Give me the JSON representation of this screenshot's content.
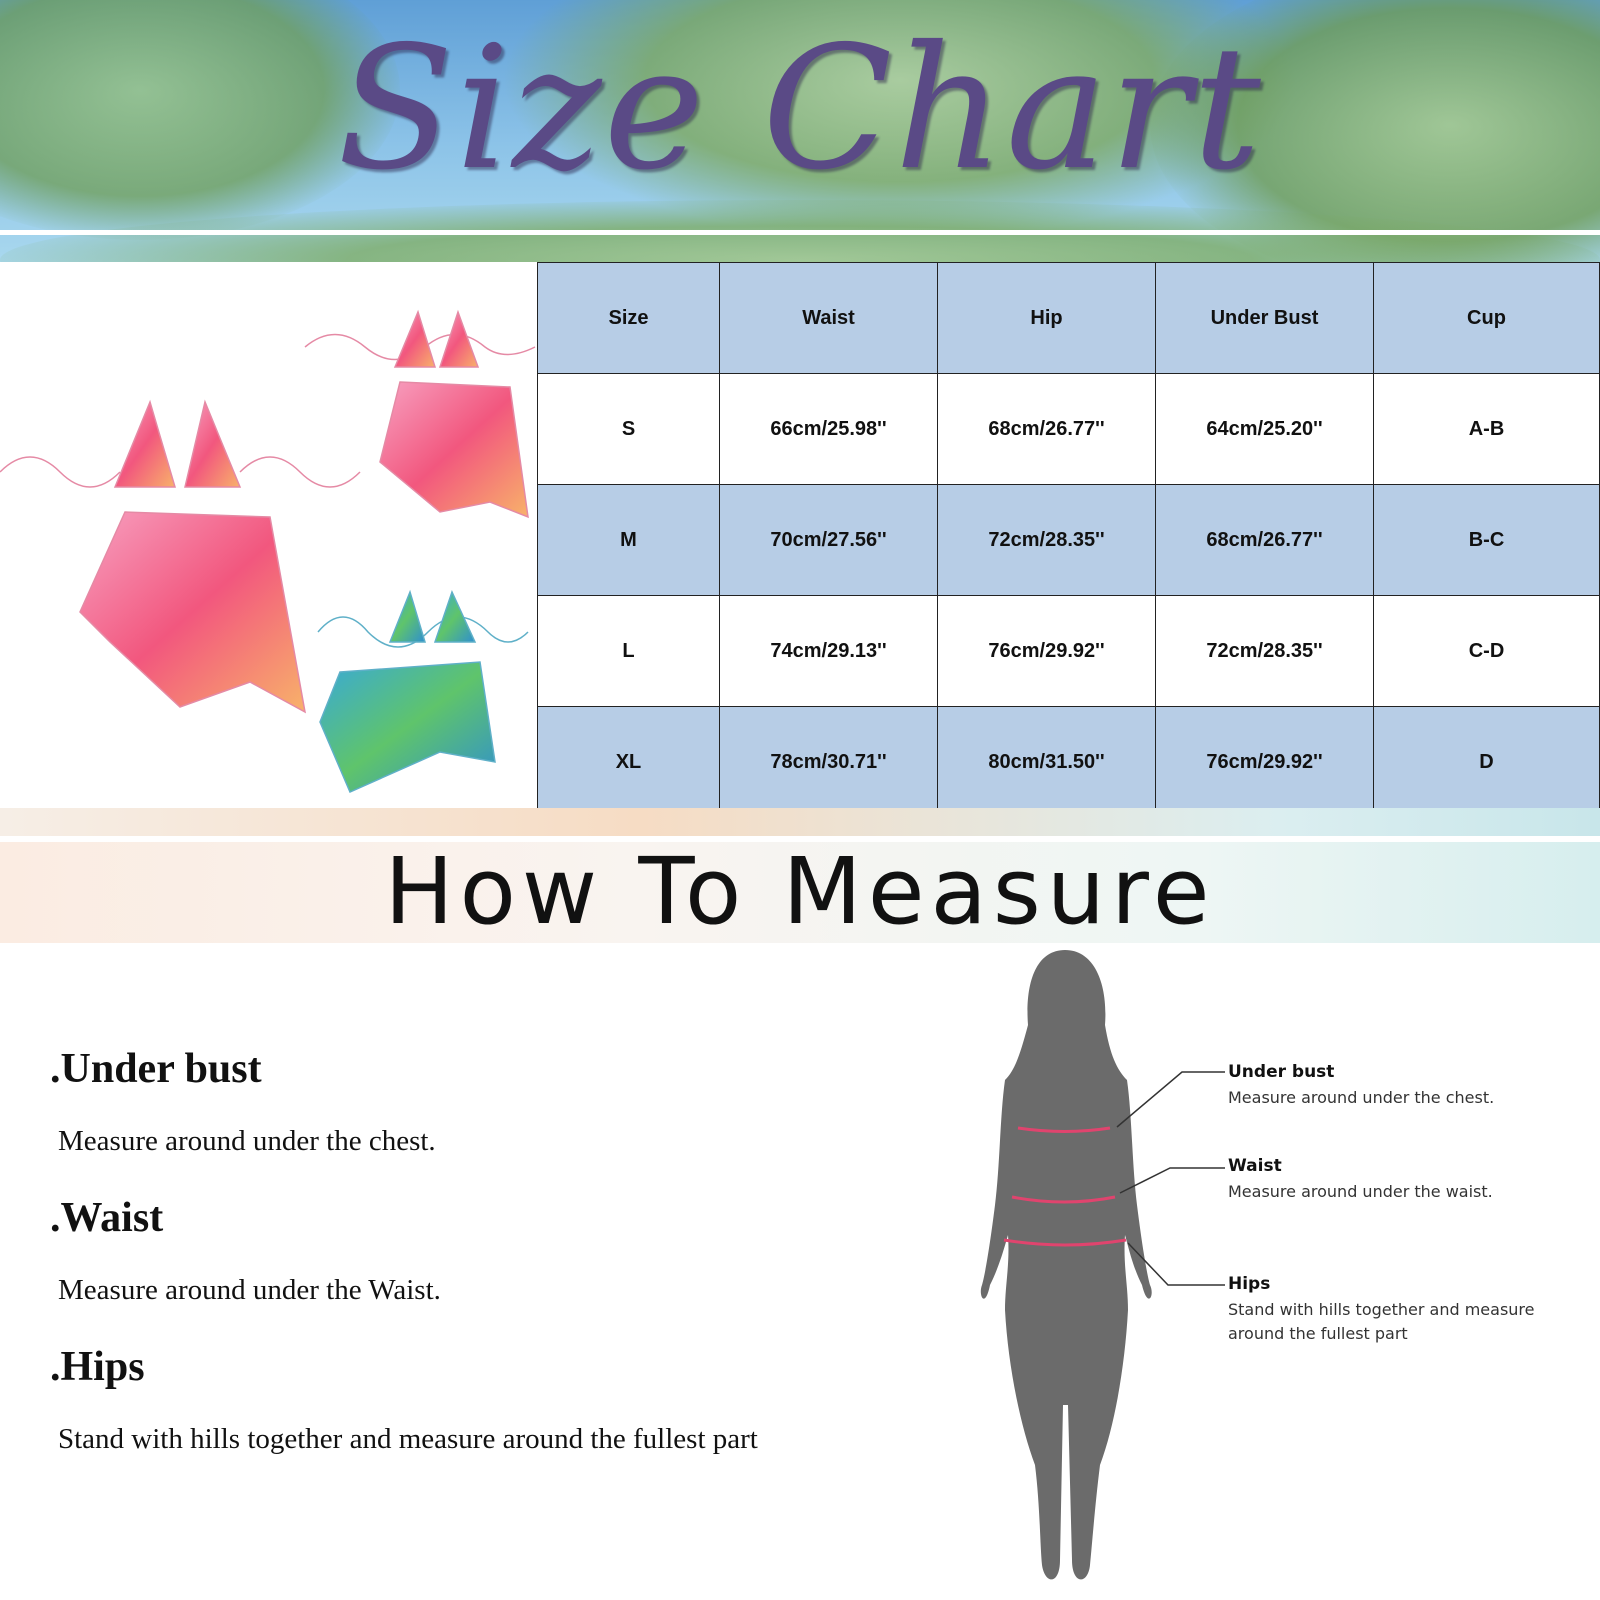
{
  "header": {
    "title": "Size Chart"
  },
  "size_table": {
    "columns": [
      "Size",
      "Waist",
      "Hip",
      "Under Bust",
      "Cup"
    ],
    "rows": [
      [
        "S",
        "66cm/25.98''",
        "68cm/26.77''",
        "64cm/25.20''",
        "A-B"
      ],
      [
        "M",
        "70cm/27.56''",
        "72cm/28.35''",
        "68cm/26.77''",
        "B-C"
      ],
      [
        "L",
        "74cm/29.13''",
        "76cm/29.92''",
        "72cm/28.35''",
        "C-D"
      ],
      [
        "XL",
        "78cm/30.71''",
        "80cm/31.50''",
        "76cm/29.92''",
        "D"
      ]
    ]
  },
  "how_to_measure": {
    "title": "How To Measure",
    "items": [
      {
        "title": ".Under bust",
        "text": "Measure around under the chest."
      },
      {
        "title": ".Waist",
        "text": "Measure around under the Waist."
      },
      {
        "title": ".Hips",
        "text": "Stand with hills together and measure around the fullest part"
      }
    ]
  },
  "diagram": {
    "callouts": [
      {
        "title": "Under bust",
        "text": "Measure around under the chest."
      },
      {
        "title": "Waist",
        "text": "Measure around under the waist."
      },
      {
        "title": "Hips",
        "text": "Stand with hills together and measure",
        "text2": "around  the fullest part"
      }
    ]
  },
  "colors": {
    "title": "#5a4a86",
    "table_blue": "#b7cde6",
    "measure_line": "#e0446e",
    "silhouette": "#6b6b6b"
  }
}
